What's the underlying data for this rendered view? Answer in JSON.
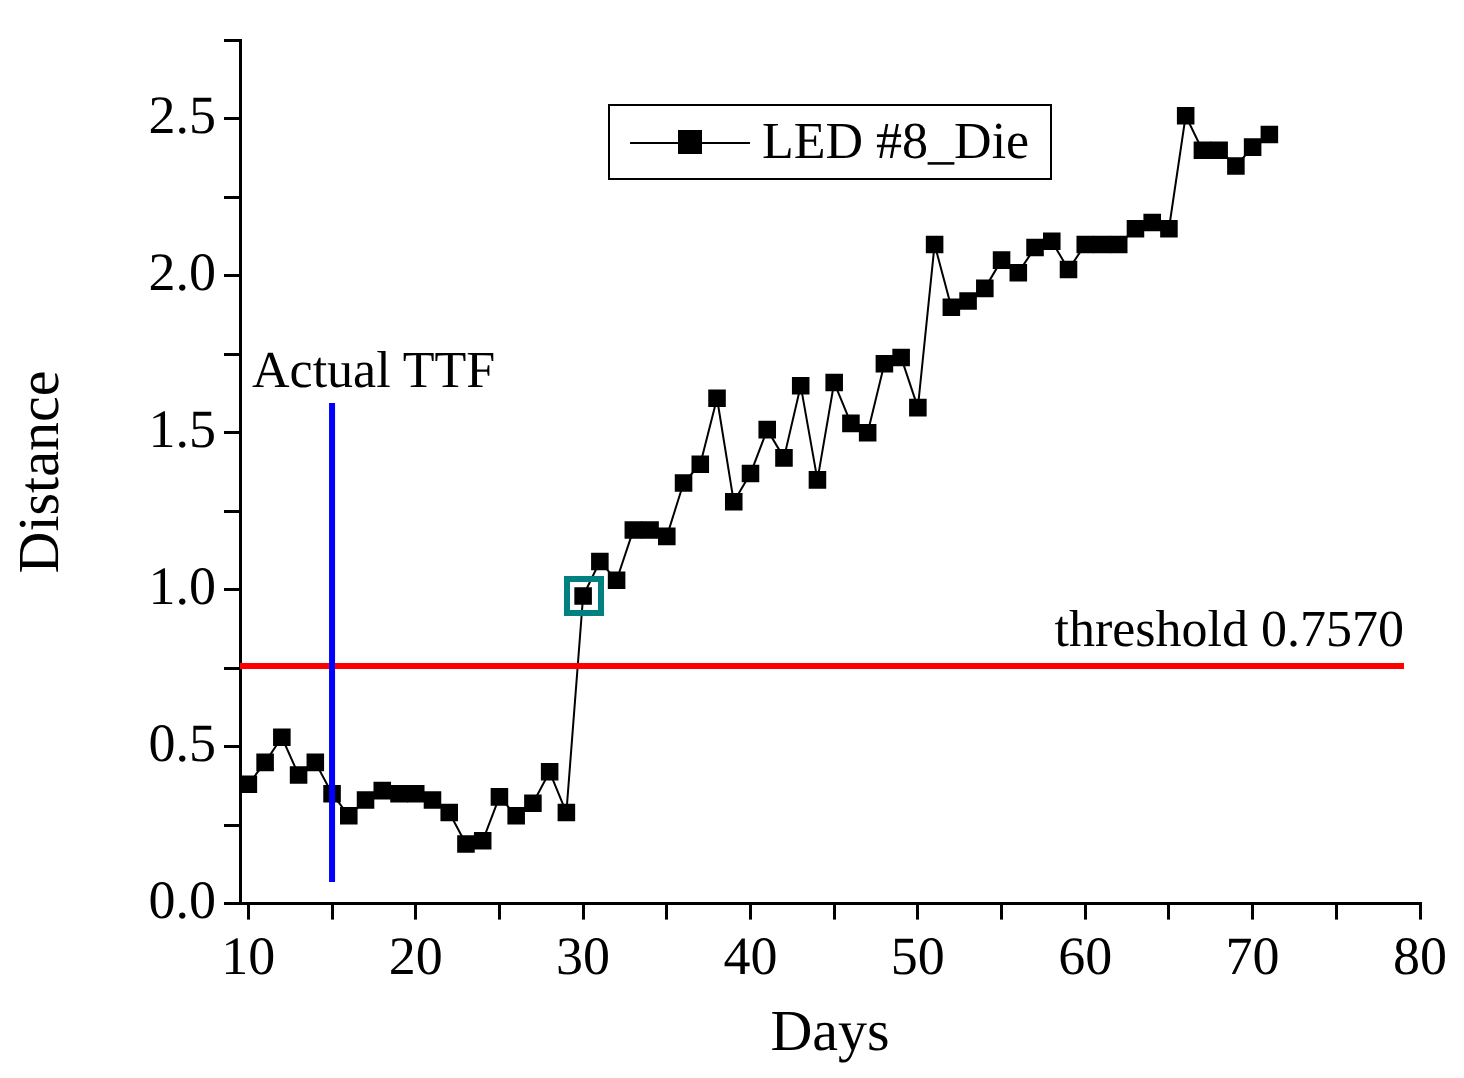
{
  "chart_data": {
    "type": "line",
    "xlabel": "Days",
    "ylabel": "Distance",
    "x": [
      10,
      11,
      12,
      13,
      14,
      15,
      16,
      17,
      18,
      19,
      20,
      21,
      22,
      23,
      24,
      25,
      26,
      27,
      28,
      29,
      30,
      31,
      32,
      33,
      34,
      35,
      36,
      37,
      38,
      39,
      40,
      41,
      42,
      43,
      44,
      45,
      46,
      47,
      48,
      49,
      50,
      51,
      52,
      53,
      54,
      55,
      56,
      57,
      58,
      59,
      60,
      61,
      62,
      63,
      64,
      65,
      66,
      67,
      68,
      69,
      70,
      71
    ],
    "series": [
      {
        "name": "LED #8_Die",
        "color": "#000000",
        "values": [
          0.38,
          0.45,
          0.53,
          0.41,
          0.45,
          0.35,
          0.28,
          0.33,
          0.36,
          0.35,
          0.35,
          0.33,
          0.29,
          0.19,
          0.2,
          0.34,
          0.28,
          0.32,
          0.42,
          0.29,
          0.98,
          1.09,
          1.03,
          1.19,
          1.19,
          1.17,
          1.34,
          1.4,
          1.61,
          1.28,
          1.37,
          1.51,
          1.42,
          1.65,
          1.35,
          1.66,
          1.53,
          1.5,
          1.72,
          1.74,
          1.58,
          2.1,
          1.9,
          1.92,
          1.96,
          2.05,
          2.01,
          2.09,
          2.11,
          2.02,
          2.1,
          2.1,
          2.1,
          2.15,
          2.17,
          2.15,
          2.51,
          2.4,
          2.4,
          2.35,
          2.41,
          2.45
        ]
      }
    ],
    "xlim": [
      9.5,
      80
    ],
    "xticks": [
      10,
      {
        "value": 15,
        "label": null
      },
      20,
      {
        "value": 25,
        "label": null
      },
      30,
      {
        "value": 35,
        "label": null
      },
      40,
      {
        "value": 45,
        "label": null
      },
      50,
      {
        "value": 55,
        "label": null
      },
      60,
      {
        "value": 65,
        "label": null
      },
      70,
      {
        "value": 75,
        "label": null
      },
      80
    ],
    "ylim": [
      0,
      2.75
    ],
    "yticks": [
      {
        "value": 0,
        "label": "0.0"
      },
      {
        "value": 0.25,
        "label": null
      },
      0.5,
      {
        "value": 0.75,
        "label": null
      },
      {
        "value": 1,
        "label": "1.0"
      },
      {
        "value": 1.25,
        "label": null
      },
      1.5,
      {
        "value": 1.75,
        "label": null
      },
      {
        "value": 2,
        "label": "2.0"
      },
      {
        "value": 2.25,
        "label": null
      },
      2.5,
      {
        "value": 2.75,
        "label": null
      }
    ],
    "ref_lines": [
      {
        "axis": "y",
        "value": 0.757,
        "label": "threshold 0.7570",
        "color": "#ff0000"
      },
      {
        "axis": "x",
        "value": 15,
        "label": "Actual TTF",
        "color": "#0000ff"
      }
    ],
    "grid": false,
    "legend": "top",
    "marker": "square",
    "line_style": "solid"
  }
}
